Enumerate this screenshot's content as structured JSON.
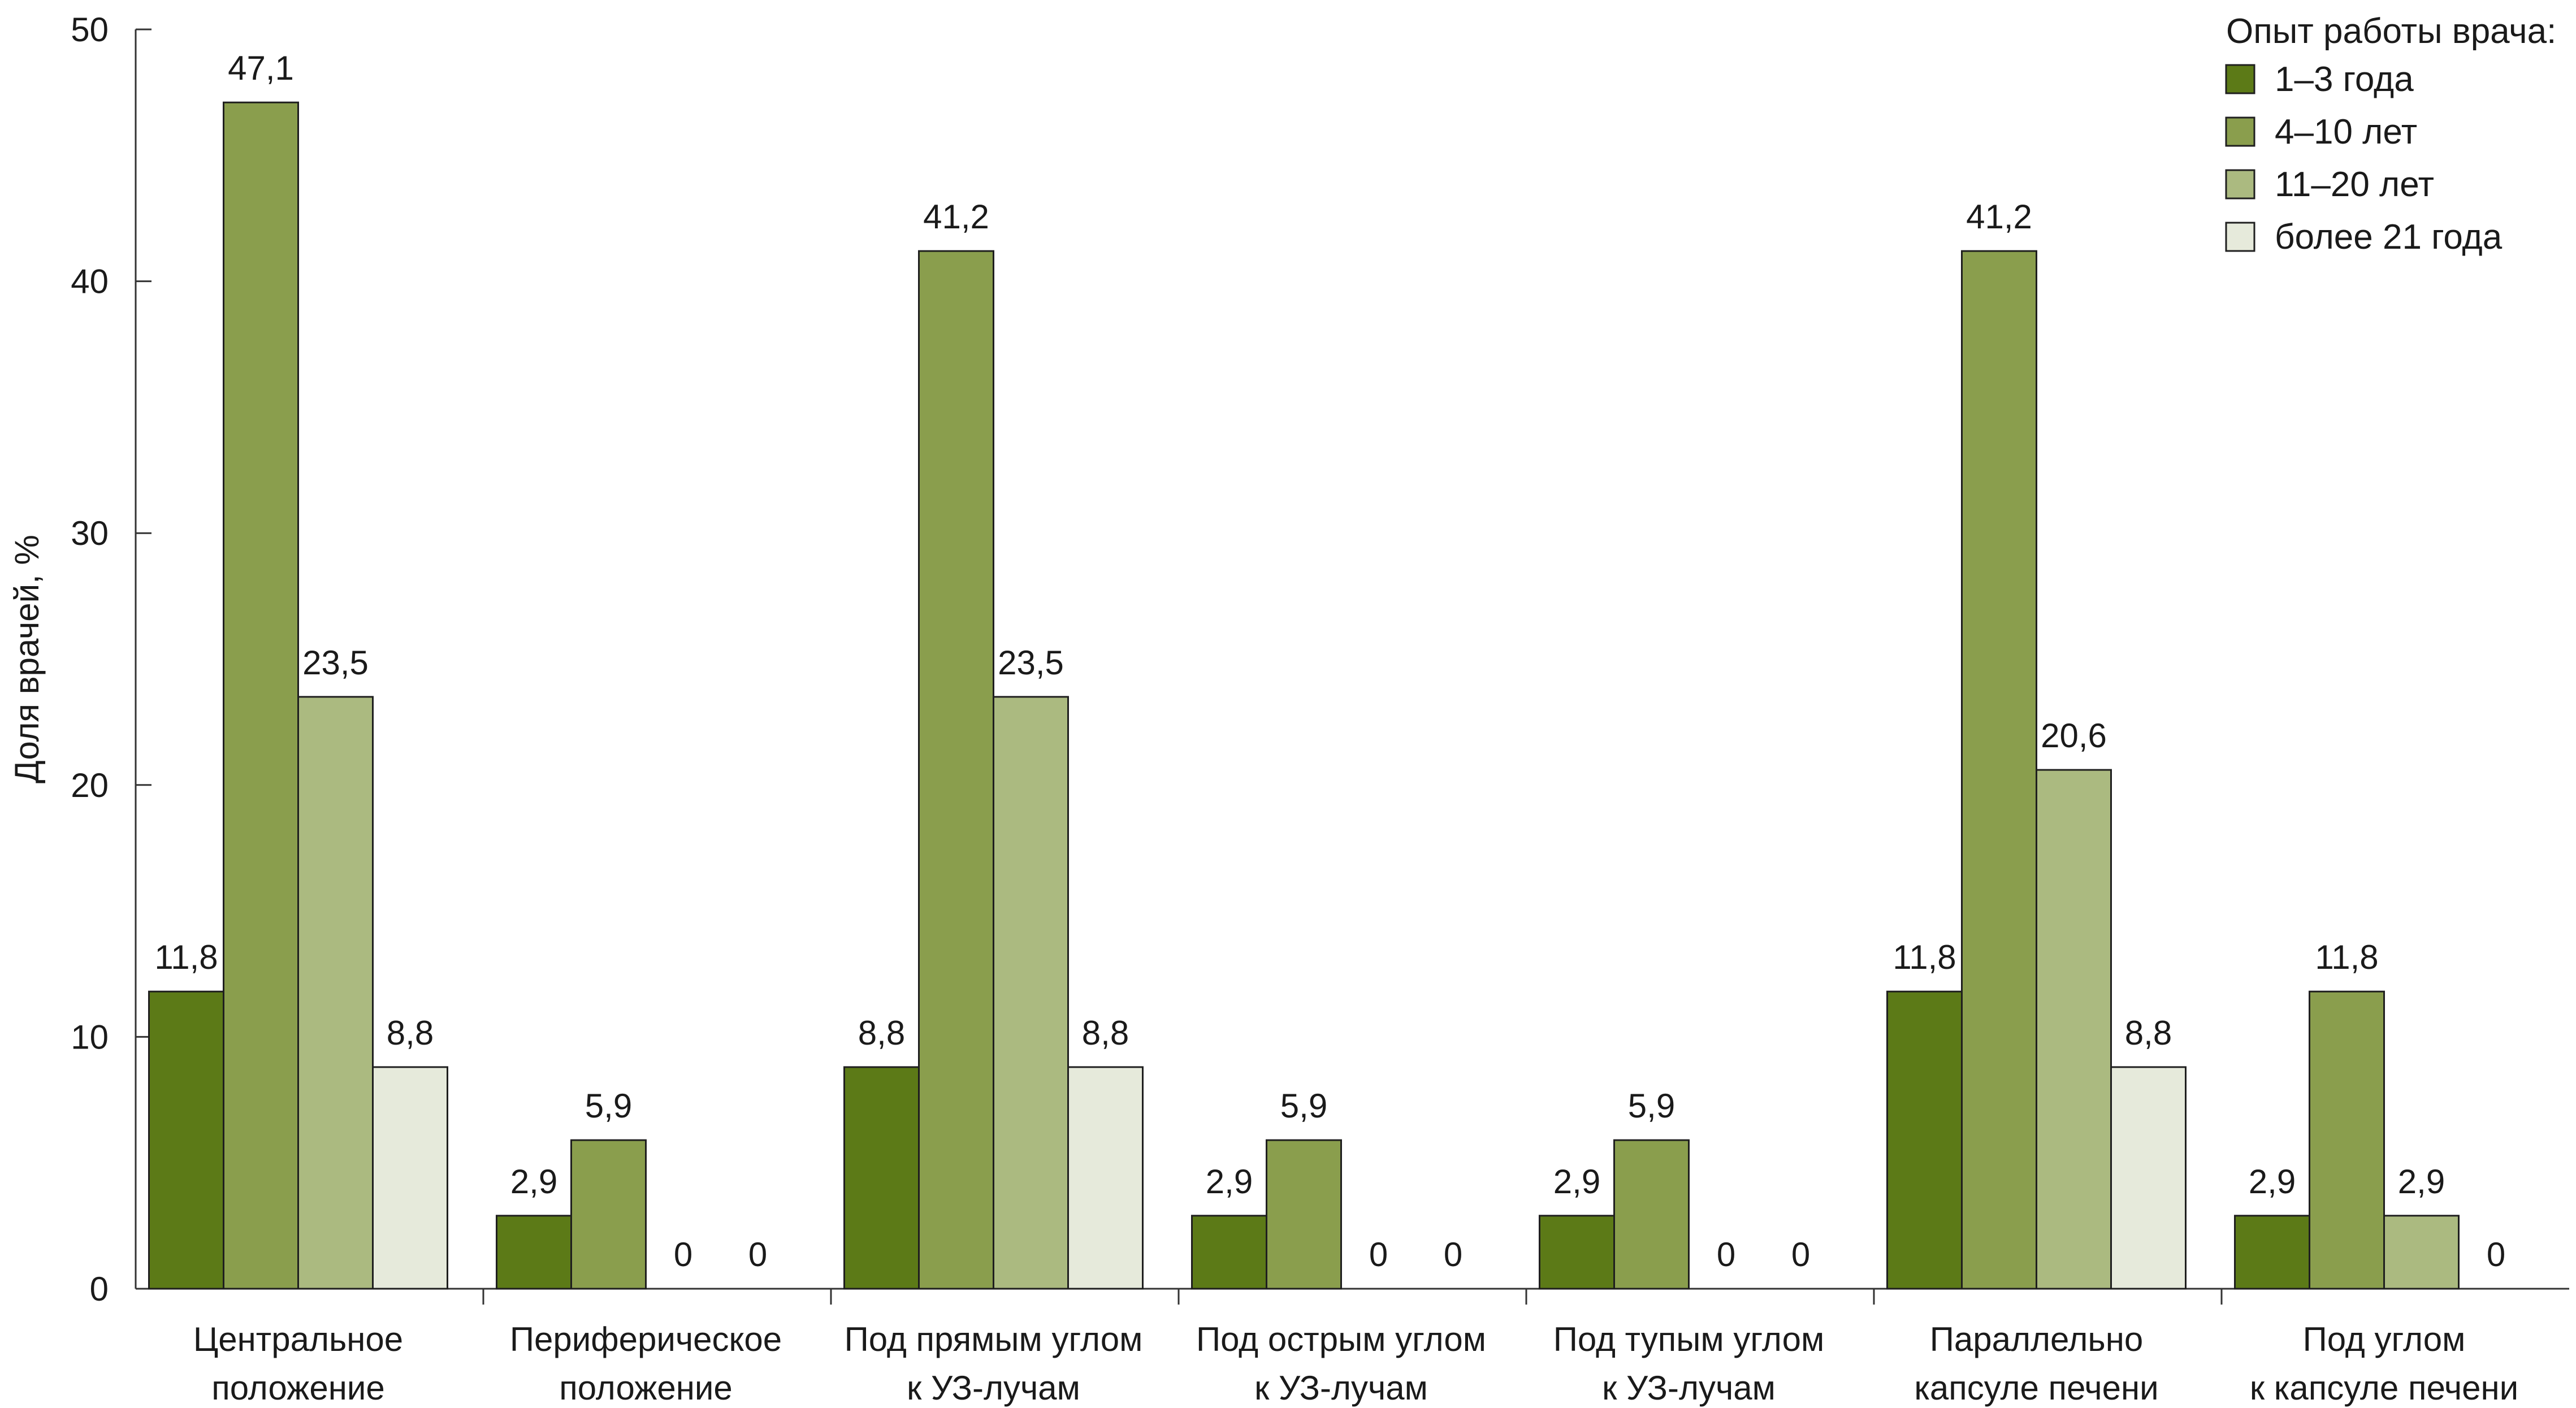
{
  "chart_data": {
    "type": "bar",
    "title": "",
    "xlabel": "",
    "ylabel": "Доля врачей, %",
    "ylim": [
      0,
      50
    ],
    "yticks": [
      "0",
      "10",
      "20",
      "30",
      "40",
      "50"
    ],
    "grid": false,
    "legend_position": "top-right",
    "legend_title": "Опыт работы врача:",
    "categories": [
      [
        "Центральное",
        "положение"
      ],
      [
        "Периферическое",
        "положение"
      ],
      [
        "Под прямым углом",
        "к УЗ-лучам"
      ],
      [
        "Под острым углом",
        "к УЗ-лучам"
      ],
      [
        "Под тупым углом",
        "к УЗ-лучам"
      ],
      [
        "Параллельно",
        "капсуле печени"
      ],
      [
        "Под углом",
        "к капсуле печени"
      ]
    ],
    "series": [
      {
        "name": "1–3 года",
        "color": "#5c7a17",
        "values": [
          11.8,
          2.9,
          8.8,
          2.9,
          2.9,
          11.8,
          2.9
        ],
        "labels": [
          "11,8",
          "2,9",
          "8,8",
          "2,9",
          "2,9",
          "11,8",
          "2,9"
        ]
      },
      {
        "name": "4–10 лет",
        "color": "#8a9e4d",
        "values": [
          47.1,
          5.9,
          41.2,
          5.9,
          5.9,
          41.2,
          11.8
        ],
        "labels": [
          "47,1",
          "5,9",
          "41,2",
          "5,9",
          "5,9",
          "41,2",
          "11,8"
        ]
      },
      {
        "name": "11–20 лет",
        "color": "#abba80",
        "values": [
          23.5,
          0,
          23.5,
          0,
          0,
          20.6,
          2.9
        ],
        "labels": [
          "23,5",
          "0",
          "23,5",
          "0",
          "0",
          "20,6",
          "2,9"
        ]
      },
      {
        "name": "более 21 года",
        "color": "#e6eadb",
        "values": [
          8.8,
          0,
          8.8,
          0,
          0,
          8.8,
          0
        ],
        "labels": [
          "8,8",
          "0",
          "8,8",
          "0",
          "0",
          "8,8",
          "0"
        ]
      }
    ]
  }
}
